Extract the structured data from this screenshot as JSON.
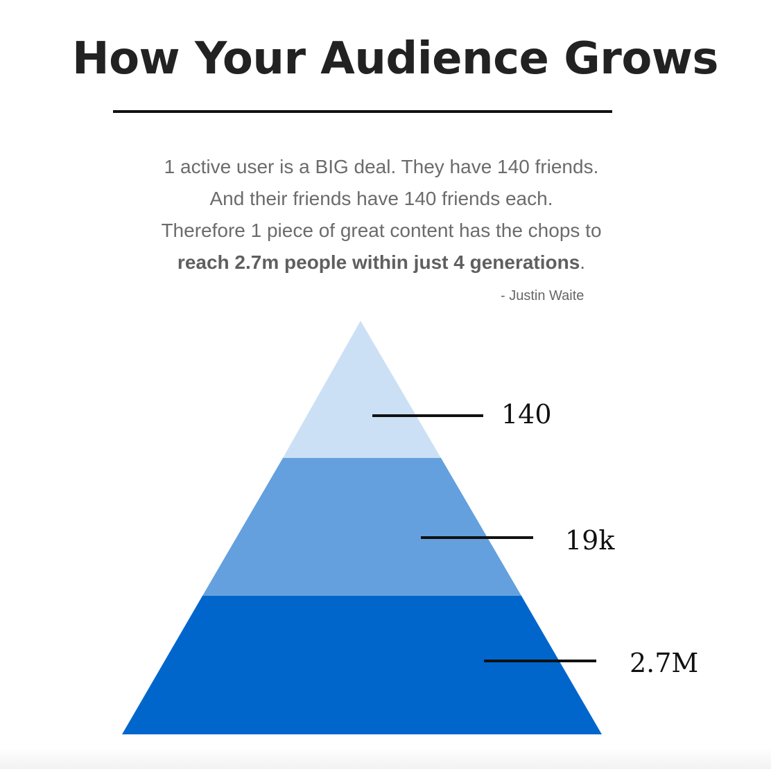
{
  "title": "How Your Audience Grows",
  "quote": {
    "line1": "1 active user is a BIG deal. They have 140 friends.",
    "line2": "And their friends have 140 friends each.",
    "line3": "Therefore 1 piece of great content has the chops to",
    "line4_bold": "reach 2.7m people within just 4 generations",
    "line4_end": "."
  },
  "author": "- Justin Waite",
  "pyramid": {
    "tiers": [
      {
        "label": "140",
        "color": "#cce0f5"
      },
      {
        "label": "19k",
        "color": "#65a0de"
      },
      {
        "label": "2.7M",
        "color": "#0066cc"
      }
    ]
  }
}
